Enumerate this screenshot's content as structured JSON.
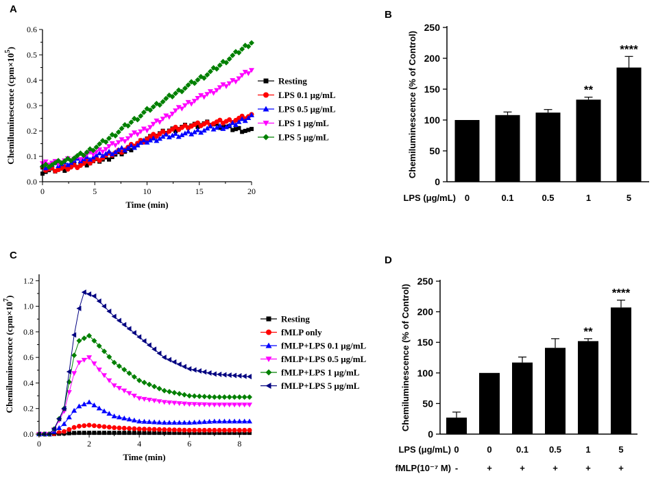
{
  "chart_data": [
    {
      "panel": "A",
      "type": "line",
      "xlabel": "Time (min)",
      "ylabel": "Chemiluminescence (cpm×10",
      "ylabel_exp": "5",
      "ylabel_close": ")",
      "xlim": [
        0,
        20
      ],
      "ylim": [
        0,
        0.6
      ],
      "xticks": [
        "0",
        "5",
        "10",
        "15",
        "20"
      ],
      "yticks": [
        "0.0",
        "0.1",
        "0.2",
        "0.3",
        "0.4",
        "0.5",
        "0.6"
      ],
      "legend": "right-middle",
      "series": [
        {
          "name": "Resting",
          "color": "#000000",
          "marker": "square",
          "x": [
            0,
            2,
            4,
            6,
            8,
            10,
            12,
            14,
            16,
            18,
            20
          ],
          "y": [
            0.04,
            0.05,
            0.07,
            0.09,
            0.12,
            0.17,
            0.2,
            0.22,
            0.23,
            0.21,
            0.2
          ]
        },
        {
          "name": "LPS 0.1 μg/mL",
          "color": "#ff0000",
          "marker": "circle",
          "x": [
            0,
            2,
            4,
            6,
            8,
            10,
            12,
            14,
            16,
            18,
            20
          ],
          "y": [
            0.05,
            0.05,
            0.07,
            0.1,
            0.13,
            0.17,
            0.2,
            0.22,
            0.23,
            0.24,
            0.26
          ]
        },
        {
          "name": "LPS 0.5 μg/mL",
          "color": "#0000ff",
          "marker": "triangle-up",
          "x": [
            0,
            2,
            4,
            6,
            8,
            10,
            12,
            14,
            16,
            18,
            20
          ],
          "y": [
            0.06,
            0.07,
            0.09,
            0.11,
            0.13,
            0.16,
            0.18,
            0.19,
            0.21,
            0.22,
            0.26
          ]
        },
        {
          "name": "LPS 1 μg/mL",
          "color": "#ff00ff",
          "marker": "triangle-down",
          "x": [
            0,
            2,
            4,
            6,
            8,
            10,
            12,
            14,
            16,
            18,
            20
          ],
          "y": [
            0.07,
            0.08,
            0.1,
            0.13,
            0.17,
            0.21,
            0.26,
            0.31,
            0.35,
            0.39,
            0.44
          ]
        },
        {
          "name": "LPS 5 μg/mL",
          "color": "#008000",
          "marker": "diamond",
          "x": [
            0,
            2,
            4,
            6,
            8,
            10,
            12,
            14,
            16,
            18,
            20
          ],
          "y": [
            0.06,
            0.08,
            0.11,
            0.16,
            0.22,
            0.28,
            0.33,
            0.38,
            0.43,
            0.49,
            0.55
          ]
        }
      ]
    },
    {
      "panel": "B",
      "type": "bar",
      "xlabel": "LPS (μg/mL)",
      "ylabel": "Chemiluminescence (% of Control)",
      "categories": [
        "0",
        "0.1",
        "0.5",
        "1",
        "5"
      ],
      "values": [
        100,
        108,
        112,
        133,
        185
      ],
      "errors": [
        0,
        5,
        5,
        4,
        18
      ],
      "annotations": [
        "",
        "",
        "",
        "**",
        "****"
      ],
      "ylim": [
        0,
        250
      ],
      "yticks": [
        "0",
        "50",
        "100",
        "150",
        "200",
        "250"
      ]
    },
    {
      "panel": "C",
      "type": "line",
      "xlabel": "Time (min)",
      "ylabel": "Chemiluminescence (cpm×10",
      "ylabel_exp": "7",
      "ylabel_close": ")",
      "xlim": [
        0,
        8.4
      ],
      "ylim": [
        0,
        1.25
      ],
      "xticks": [
        "0",
        "2",
        "4",
        "6",
        "8"
      ],
      "yticks": [
        "0.0",
        "0.2",
        "0.4",
        "0.6",
        "0.8",
        "1.0",
        "1.2"
      ],
      "legend": "right-outside",
      "series": [
        {
          "name": "Resting",
          "color": "#000000",
          "marker": "square",
          "x": [
            0,
            0.5,
            1,
            1.5,
            2,
            3,
            4,
            5,
            6,
            7,
            8.4
          ],
          "y": [
            0,
            0,
            0.005,
            0.01,
            0.01,
            0.01,
            0.01,
            0.01,
            0.01,
            0.01,
            0.01
          ]
        },
        {
          "name": "fMLP only",
          "color": "#ff0000",
          "marker": "circle",
          "x": [
            0,
            0.5,
            1,
            1.5,
            2,
            2.5,
            3,
            4,
            5,
            6,
            7,
            8.4
          ],
          "y": [
            0,
            0,
            0.02,
            0.06,
            0.07,
            0.06,
            0.05,
            0.04,
            0.035,
            0.03,
            0.03,
            0.03
          ]
        },
        {
          "name": "fMLP+LPS 0.1 μg/mL",
          "color": "#0000ff",
          "marker": "triangle-up",
          "x": [
            0,
            0.5,
            1,
            1.5,
            2,
            2.5,
            3,
            4,
            5,
            6,
            7,
            8.4
          ],
          "y": [
            0,
            0,
            0.08,
            0.21,
            0.25,
            0.19,
            0.14,
            0.1,
            0.09,
            0.09,
            0.1,
            0.1
          ]
        },
        {
          "name": "fMLP+LPS 0.5 μg/mL",
          "color": "#ff00ff",
          "marker": "triangle-down",
          "x": [
            0,
            0.5,
            1,
            1.5,
            2,
            2.5,
            3,
            4,
            5,
            6,
            7,
            8.4
          ],
          "y": [
            0,
            0,
            0.18,
            0.55,
            0.6,
            0.48,
            0.38,
            0.28,
            0.25,
            0.235,
            0.23,
            0.23
          ]
        },
        {
          "name": "fMLP+LPS 1 μg/mL",
          "color": "#008000",
          "marker": "diamond",
          "x": [
            0,
            0.5,
            1,
            1.5,
            2,
            2.5,
            3,
            4,
            5,
            6,
            7,
            8.4
          ],
          "y": [
            0,
            0,
            0.2,
            0.72,
            0.77,
            0.67,
            0.56,
            0.42,
            0.34,
            0.3,
            0.29,
            0.29
          ]
        },
        {
          "name": "fMLP+LPS 5 μg/mL",
          "color": "#000080",
          "marker": "triangle-left",
          "x": [
            0,
            0.5,
            1,
            1.5,
            1.8,
            2.2,
            2.6,
            3,
            4,
            5,
            6,
            7,
            8.4
          ],
          "y": [
            0,
            0,
            0.2,
            0.92,
            1.11,
            1.08,
            1.0,
            0.92,
            0.76,
            0.6,
            0.51,
            0.47,
            0.45
          ]
        }
      ]
    },
    {
      "panel": "D",
      "type": "bar",
      "ylabel": "Chemiluminescence (% of Control)",
      "row_labels": [
        "LPS (μg/mL)",
        "fMLP(10⁻⁷ M)"
      ],
      "categories": [
        "0",
        "0",
        "0.1",
        "0.5",
        "1",
        "5"
      ],
      "fmlp": [
        "-",
        "+",
        "+",
        "+",
        "+",
        "+"
      ],
      "values": [
        27,
        100,
        117,
        141,
        152,
        207
      ],
      "errors": [
        9,
        0,
        9,
        15,
        4,
        12
      ],
      "annotations": [
        "",
        "",
        "",
        "",
        "**",
        "****"
      ],
      "ylim": [
        0,
        250
      ],
      "yticks": [
        "0",
        "50",
        "100",
        "150",
        "200",
        "250"
      ]
    }
  ]
}
